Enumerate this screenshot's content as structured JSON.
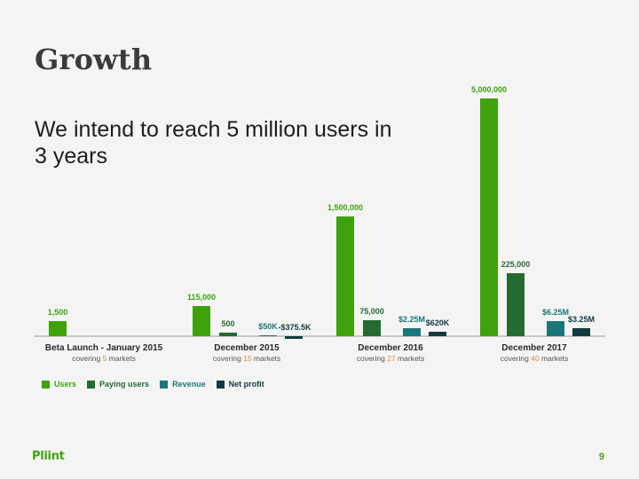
{
  "slide": {
    "title": "Growth",
    "subtitle": "We intend to reach 5 million users in 3 years",
    "logo": "Pliint",
    "page_number": "9"
  },
  "colors": {
    "users": "#3fa20c",
    "paying": "#246a32",
    "revenue": "#1b767a",
    "profit": "#123a3c",
    "highlight": "#e8843c",
    "axis": "#c8c8c8",
    "text_dark": "#2a2a2a"
  },
  "chart_data": {
    "type": "bar",
    "title": "",
    "categories": [
      {
        "label": "Beta Launch - January 2015",
        "covering_prefix": "covering ",
        "markets_count": "5",
        "covering_suffix": " markets"
      },
      {
        "label": "December 2015",
        "covering_prefix": "covering ",
        "markets_count": "15",
        "covering_suffix": " markets"
      },
      {
        "label": "December 2016",
        "covering_prefix": "covering ",
        "markets_count": "27",
        "covering_suffix": " markets"
      },
      {
        "label": "December 2017",
        "covering_prefix": "covering ",
        "markets_count": "40",
        "covering_suffix": " markets"
      }
    ],
    "series": [
      {
        "name": "Users",
        "color_key": "users",
        "values": [
          1500,
          115000,
          1500000,
          5000000
        ],
        "labels": [
          "1,500",
          "115,000",
          "1,500,000",
          "5,000,000"
        ]
      },
      {
        "name": "Paying users",
        "color_key": "paying",
        "values": [
          null,
          500,
          75000,
          225000
        ],
        "labels": [
          "",
          "500",
          "75,000",
          "225,000"
        ]
      },
      {
        "name": "Revenue",
        "color_key": "revenue",
        "values": [
          null,
          50000,
          2250000,
          6250000
        ],
        "labels": [
          "",
          "$50K",
          "$2.25M",
          "$6.25M"
        ]
      },
      {
        "name": "Net profit",
        "color_key": "profit",
        "values": [
          null,
          -375500,
          620000,
          3250000
        ],
        "labels": [
          "",
          "-$375.5K",
          "$620K",
          "$3.25M"
        ]
      }
    ],
    "legend_position": "bottom-left",
    "grid": false
  }
}
